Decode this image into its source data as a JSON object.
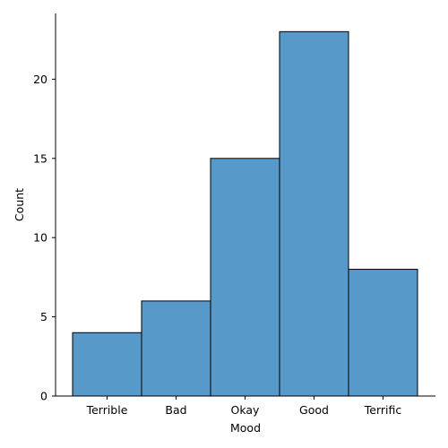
{
  "chart_data": {
    "type": "bar",
    "categories": [
      "Terrible",
      "Bad",
      "Okay",
      "Good",
      "Terrific"
    ],
    "values": [
      4,
      6,
      15,
      23,
      8
    ],
    "xlabel": "Mood",
    "ylabel": "Count",
    "ylim": [
      0,
      24.15
    ],
    "yticks": [
      0,
      5,
      10,
      15,
      20
    ],
    "bar_color": "#5799c8",
    "edge_color": "#000000",
    "grid": false,
    "legend": "none"
  }
}
